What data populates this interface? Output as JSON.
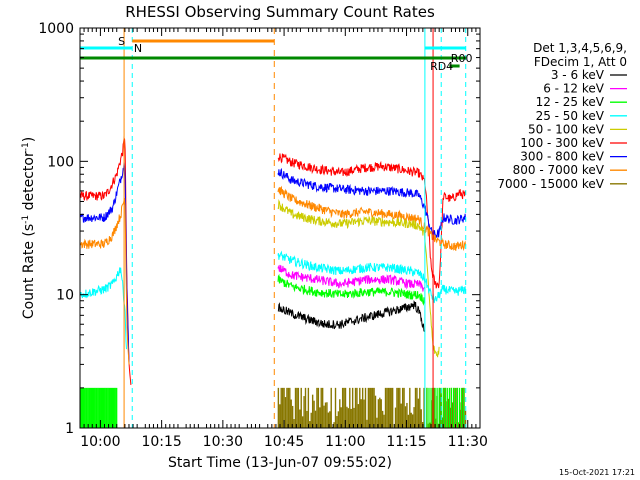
{
  "chart_data": {
    "type": "line",
    "title": "RHESSI Observing Summary Count Rates",
    "xlabel": "Start Time (13-Jun-07 09:55:02)",
    "ylabel_main": "Count Rate (s",
    "ylabel_exp1": "-1",
    "ylabel_mid": " detector",
    "ylabel_exp2": "-1",
    "ylabel_end": ")",
    "x_range_min": [
      0,
      98
    ],
    "y_log_range": [
      1,
      1000
    ],
    "x_ticks": [
      {
        "t": 5,
        "label": "10:00"
      },
      {
        "t": 20,
        "label": "10:15"
      },
      {
        "t": 35,
        "label": "10:30"
      },
      {
        "t": 50,
        "label": "10:45"
      },
      {
        "t": 65,
        "label": "11:00"
      },
      {
        "t": 80,
        "label": "11:15"
      },
      {
        "t": 95,
        "label": "11:30"
      }
    ],
    "y_ticks": [
      {
        "v": 1,
        "label": "1"
      },
      {
        "v": 10,
        "label": "10"
      },
      {
        "v": 100,
        "label": "100"
      },
      {
        "v": 1000,
        "label": "1000"
      }
    ],
    "timestamp": "15-Oct-2021 17:21",
    "legend": {
      "header1": "Det 1,3,4,5,6,9,",
      "header2": "FDecim 1, Att 0",
      "entries": [
        {
          "label": "3 - 6 keV",
          "color": "#000000"
        },
        {
          "label": "6 - 12 keV",
          "color": "#ff00ff"
        },
        {
          "label": "12 - 25 keV",
          "color": "#00ff00"
        },
        {
          "label": "25 - 50 keV",
          "color": "#00ffff"
        },
        {
          "label": "50 - 100 keV",
          "color": "#cccc00"
        },
        {
          "label": "100 - 300 keV",
          "color": "#ff0000"
        },
        {
          "label": "300 - 800 keV",
          "color": "#0000ff"
        },
        {
          "label": "800 - 7000 keV",
          "color": "#ff8800"
        },
        {
          "label": "7000 - 15000 keV",
          "color": "#887700"
        }
      ]
    },
    "flags": [
      {
        "label": "S",
        "color": "#ff8800"
      },
      {
        "label": "N",
        "color": "#00ffff"
      },
      {
        "label": "R00",
        "color": "#00ffff"
      },
      {
        "label": "RD4",
        "color": "#008800"
      }
    ],
    "series": [
      {
        "name": "100 - 300 keV",
        "color": "#ff0000",
        "points": [
          [
            0,
            55
          ],
          [
            6,
            55
          ],
          [
            7,
            60
          ],
          [
            9,
            80
          ],
          [
            10.5,
            120
          ],
          [
            11,
            160
          ],
          [
            11.5,
            12
          ],
          [
            12,
            3
          ],
          [
            12.5,
            2
          ]
        ],
        "points2": [
          [
            48.5,
            110
          ],
          [
            52,
            98
          ],
          [
            58,
            88
          ],
          [
            64,
            82
          ],
          [
            70,
            90
          ],
          [
            74,
            92
          ],
          [
            78,
            88
          ],
          [
            81,
            84
          ],
          [
            83,
            82
          ],
          [
            84.5,
            70
          ],
          [
            85.5,
            30
          ],
          [
            86,
            16
          ],
          [
            87,
            12
          ],
          [
            88,
            12
          ],
          [
            89,
            55
          ],
          [
            91,
            52
          ],
          [
            93,
            58
          ],
          [
            94.5,
            55
          ]
        ]
      },
      {
        "name": "300 - 800 keV",
        "color": "#0000ff",
        "points": [
          [
            0,
            38
          ],
          [
            6,
            38
          ],
          [
            8,
            45
          ],
          [
            10,
            75
          ],
          [
            11,
            100
          ],
          [
            11.5,
            10
          ],
          [
            12,
            3
          ]
        ],
        "points2": [
          [
            48.5,
            85
          ],
          [
            52,
            72
          ],
          [
            58,
            65
          ],
          [
            64,
            62
          ],
          [
            70,
            60
          ],
          [
            76,
            60
          ],
          [
            81,
            58
          ],
          [
            83,
            56
          ],
          [
            84.5,
            45
          ],
          [
            86,
            30
          ],
          [
            87,
            28
          ],
          [
            88,
            29
          ],
          [
            89,
            38
          ],
          [
            92,
            36
          ],
          [
            94.5,
            38
          ]
        ]
      },
      {
        "name": "800 - 7000 keV",
        "color": "#ff8800",
        "points": [
          [
            0,
            24
          ],
          [
            6,
            24
          ],
          [
            8,
            28
          ],
          [
            10,
            40
          ],
          [
            11,
            55
          ],
          [
            11.5,
            6
          ],
          [
            12,
            3
          ]
        ],
        "points2": [
          [
            48.5,
            62
          ],
          [
            52,
            52
          ],
          [
            58,
            45
          ],
          [
            64,
            40
          ],
          [
            70,
            42
          ],
          [
            76,
            40
          ],
          [
            81,
            38
          ],
          [
            83,
            37
          ],
          [
            84.5,
            32
          ],
          [
            86,
            28
          ],
          [
            87,
            26
          ],
          [
            88,
            25
          ],
          [
            89,
            24
          ],
          [
            92,
            23
          ],
          [
            94.5,
            24
          ]
        ]
      },
      {
        "name": "50 - 100 keV",
        "color": "#cccc00",
        "points": [
          [
            48.5,
            48
          ],
          [
            52,
            40
          ],
          [
            58,
            36
          ],
          [
            64,
            34
          ],
          [
            70,
            36
          ],
          [
            76,
            35
          ],
          [
            81,
            34
          ],
          [
            83,
            33
          ],
          [
            84.5,
            28
          ],
          [
            85.5,
            10
          ],
          [
            86.5,
            4
          ],
          [
            87.5,
            3.5
          ],
          [
            88,
            4
          ]
        ]
      },
      {
        "name": "25 - 50 keV",
        "color": "#00ffff",
        "points": [
          [
            0,
            10
          ],
          [
            6,
            11
          ],
          [
            8,
            12
          ],
          [
            10,
            16
          ],
          [
            11,
            8
          ],
          [
            11.5,
            3
          ]
        ],
        "points2": [
          [
            48.5,
            20
          ],
          [
            52,
            18
          ],
          [
            58,
            16
          ],
          [
            64,
            15
          ],
          [
            70,
            16
          ],
          [
            76,
            16
          ],
          [
            81,
            15
          ],
          [
            83,
            14.5
          ],
          [
            84.5,
            13
          ],
          [
            86,
            10
          ],
          [
            87,
            9
          ],
          [
            88,
            10
          ],
          [
            89,
            11
          ],
          [
            92,
            10.5
          ],
          [
            94.5,
            11
          ]
        ]
      },
      {
        "name": "6 - 12 keV",
        "color": "#ff00ff",
        "points": [
          [
            48.5,
            16
          ],
          [
            52,
            14
          ],
          [
            58,
            13
          ],
          [
            64,
            12
          ],
          [
            70,
            13
          ],
          [
            76,
            13
          ],
          [
            81,
            12
          ],
          [
            83,
            12
          ],
          [
            84.5,
            11
          ]
        ]
      },
      {
        "name": "12 - 25 keV",
        "color": "#00ff00",
        "points": [
          [
            48.5,
            13
          ],
          [
            52,
            11.5
          ],
          [
            58,
            10.5
          ],
          [
            64,
            10
          ],
          [
            70,
            10.5
          ],
          [
            76,
            10.5
          ],
          [
            81,
            10
          ],
          [
            83,
            10
          ],
          [
            84.5,
            9
          ]
        ]
      },
      {
        "name": "3 - 6 keV",
        "color": "#000000",
        "points": [
          [
            48.5,
            8
          ],
          [
            52,
            7.2
          ],
          [
            56,
            6.5
          ],
          [
            60,
            6
          ],
          [
            64,
            6
          ],
          [
            68,
            6.5
          ],
          [
            72,
            7
          ],
          [
            76,
            7.5
          ],
          [
            80,
            8
          ],
          [
            82,
            8.5
          ],
          [
            83.5,
            7
          ],
          [
            84.5,
            5
          ]
        ]
      }
    ]
  }
}
